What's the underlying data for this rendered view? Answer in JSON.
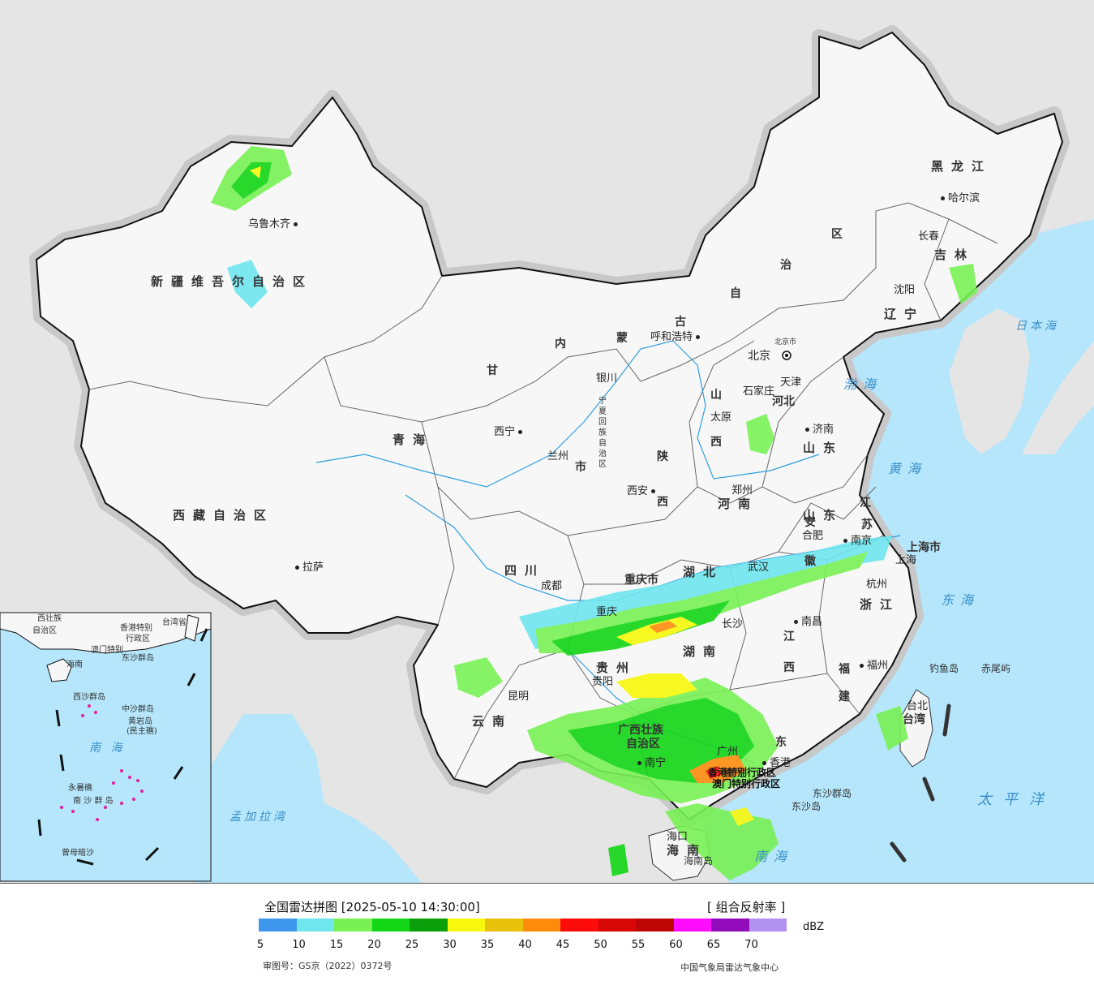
{
  "map": {
    "provinces": {
      "xinjiang": "新疆维吾尔自治区",
      "xizang": "西藏自治区",
      "neimenggu": [
        "内",
        "蒙",
        "古",
        "自",
        "治",
        "区"
      ],
      "heilongjiang": "黑龙江",
      "jilin": "吉林",
      "liaoning": "辽宁",
      "hebei": "河北",
      "shanxi": [
        "山",
        "西"
      ],
      "shandong": "山东",
      "henan": "河南",
      "shaanxi": [
        "陕",
        "西"
      ],
      "gansu": "甘",
      "qinghai": "青海",
      "ningxia": "宁夏回族自治区",
      "sichuan": "四川",
      "chongqing": "重庆市",
      "hubei": "湖北",
      "hunan": "湖南",
      "jiangxi": [
        "江",
        "西"
      ],
      "anhui": [
        "安",
        "徽"
      ],
      "jiangsu": [
        "江",
        "苏"
      ],
      "zhejiang": "浙江",
      "fujian": [
        "福",
        "建"
      ],
      "guangdong": "东",
      "guangxi": "广西壮族",
      "guangxi2": "自治区",
      "guizhou": "贵州",
      "yunnan": "云南",
      "hainan": "海南",
      "taiwan": "台湾",
      "shanghai": "上海市",
      "tianjin": "天津",
      "gansu_shi": "市",
      "hongkong": "香港特别行政区",
      "macau": "澳门特别行政区"
    },
    "cities": {
      "urumqi": "乌鲁木齐",
      "lhasa": "拉萨",
      "xining": "西宁",
      "lanzhou": "兰州",
      "yinchuan": "银川",
      "hohhot": "呼和浩特",
      "beijing": "北京",
      "beijing_shi": "北京市",
      "tianjin": "天津",
      "shijiazhuang": "石家庄",
      "taiyuan": "太原",
      "jinan": "济南",
      "zhengzhou": "郑州",
      "xian": "西安",
      "chengdu": "成都",
      "chongqing": "重庆",
      "wuhan": "武汉",
      "hefei": "合肥",
      "nanjing": "南京",
      "shanghai": "上海",
      "hangzhou": "杭州",
      "changsha": "长沙",
      "nanchang": "南昌",
      "fuzhou": "福州",
      "guiyang": "贵阳",
      "kunming": "昆明",
      "nanning": "南宁",
      "guangzhou": "广州",
      "hongkong": "香港",
      "macau": "澳门",
      "haikou": "海口",
      "taibei": "台北",
      "harbin": "哈尔滨",
      "changchun": "长春",
      "shenyang": "沈阳"
    },
    "seas": {
      "bohai": "渤海",
      "huanghai": "黄海",
      "donghai": "东海",
      "nanhai": "南海",
      "taipingyang": "太平洋",
      "ribenhai": "日本海",
      "mengjialawan": "孟加拉湾"
    },
    "islands": {
      "diaoyudao": "钓鱼岛",
      "chiweiyu": "赤尾屿",
      "dongsha": "东沙群岛",
      "dongshadao": "东沙岛",
      "hainandao": "海南岛"
    }
  },
  "inset": {
    "labels": {
      "guangxi": "西壮族",
      "zizhiqu": "自治区",
      "hongkong": "香港特别",
      "xingzhengqu": "行政区",
      "taiwan": "台湾省",
      "aomen": "澳门特别",
      "dongsha": "东沙群岛",
      "hainan": "海南",
      "zhongsha": "中沙群岛",
      "huangyan": "黄岩岛",
      "minzhu": "(民主礁)",
      "nanhai": "南  海",
      "yongshu": "永暑礁",
      "nansha": "南 沙 群 岛",
      "zengmu": "曾母暗沙",
      "xisha": "西沙群岛"
    }
  },
  "legend": {
    "title": "全国雷达拼图 [2025-05-10 14:30:00]",
    "product": "[ 组合反射率 ]",
    "unit": "dBZ",
    "colors": [
      "#3e97ec",
      "#6fe6ee",
      "#79f155",
      "#12d616",
      "#0ba00b",
      "#f8f80c",
      "#e8c10b",
      "#fe8c0b",
      "#fd0a0a",
      "#d70707",
      "#bd0505",
      "#fe0cfe",
      "#920bbb",
      "#b192ee"
    ],
    "ticks": [
      "5",
      "10",
      "15",
      "20",
      "25",
      "30",
      "35",
      "40",
      "45",
      "50",
      "55",
      "60",
      "65",
      "70"
    ],
    "review_no": "审图号：GS京（2022）0372号",
    "org": "中国气象局雷达气象中心"
  }
}
